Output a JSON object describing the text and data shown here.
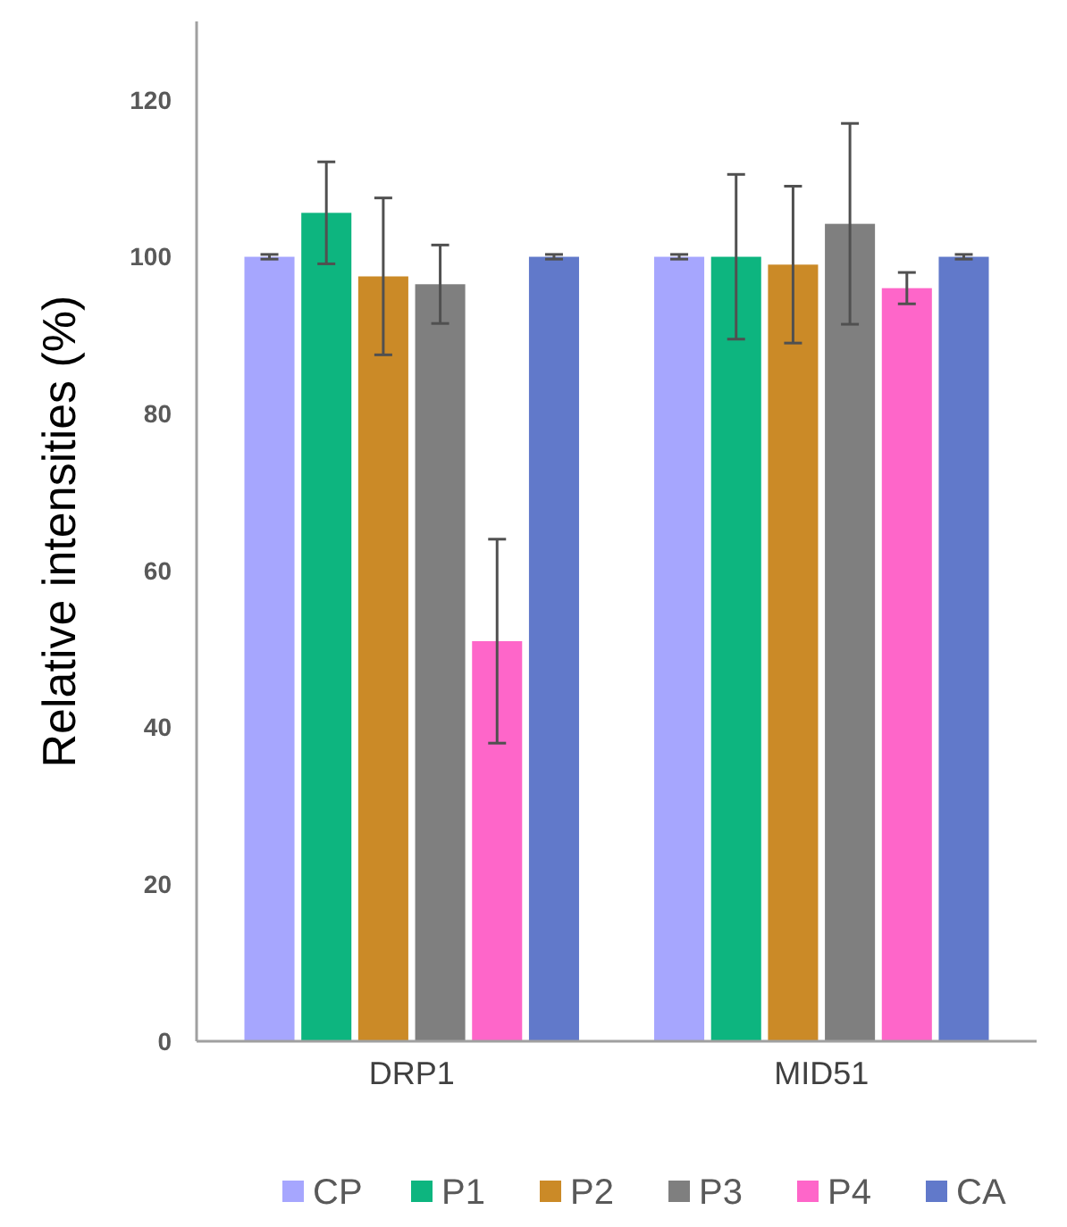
{
  "chart_data": {
    "type": "bar",
    "ylabel": "Relative intensities (%)",
    "categories": [
      "DRP1",
      "MID51"
    ],
    "ylim": [
      0,
      130
    ],
    "yticks": [
      0,
      20,
      40,
      60,
      80,
      100,
      120
    ],
    "grid": false,
    "legend": "bottom",
    "series": [
      {
        "name": "CP",
        "color": "#a6a6fe",
        "values": [
          100,
          100
        ],
        "errors": [
          0.3,
          0.3
        ]
      },
      {
        "name": "P1",
        "color": "#0db57f",
        "values": [
          105.6,
          100
        ],
        "errors": [
          6.5,
          10.5
        ]
      },
      {
        "name": "P2",
        "color": "#cb8a27",
        "values": [
          97.5,
          99
        ],
        "errors": [
          10,
          10
        ]
      },
      {
        "name": "P3",
        "color": "#7f7f7f",
        "values": [
          96.5,
          104.2
        ],
        "errors": [
          5,
          12.8
        ]
      },
      {
        "name": "P4",
        "color": "#fe66c9",
        "values": [
          51,
          96
        ],
        "errors": [
          13,
          2
        ]
      },
      {
        "name": "CA",
        "color": "#6179ca",
        "values": [
          100,
          100
        ],
        "errors": [
          0.3,
          0.3
        ]
      }
    ]
  }
}
